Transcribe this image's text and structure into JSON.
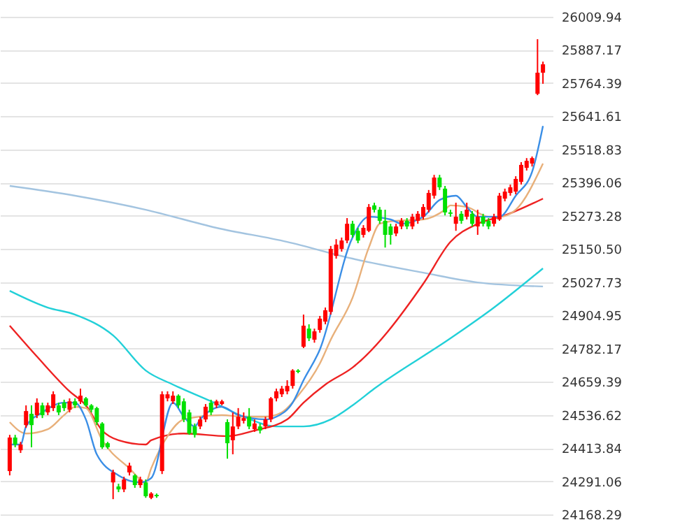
{
  "chart_data": {
    "type": "candlestick",
    "categories": [
      null,
      null,
      null,
      null,
      null,
      null,
      null,
      null,
      null,
      null,
      null,
      null,
      null,
      null,
      null,
      null,
      null,
      null,
      null,
      null,
      null,
      null,
      null,
      null,
      null,
      null,
      null,
      null,
      null,
      null,
      null,
      null,
      null,
      null,
      null,
      null,
      null,
      null,
      null,
      null,
      null,
      null,
      null,
      null,
      null,
      null,
      null,
      null,
      null,
      null,
      null,
      null,
      null,
      null,
      null,
      null,
      null,
      null,
      null,
      null,
      null,
      null,
      null,
      null,
      null,
      null,
      null,
      null,
      null,
      null,
      null,
      null,
      null,
      null,
      null,
      null,
      null,
      null,
      null,
      null,
      null,
      null,
      null,
      null,
      null,
      null,
      null,
      null,
      null,
      null,
      null,
      null,
      null,
      null,
      null,
      null,
      null,
      null,
      null
    ],
    "ohlc": [
      [
        24329,
        24463,
        24313,
        24453
      ],
      [
        24453,
        24463,
        24417,
        24427
      ],
      [
        24406,
        24437,
        24396,
        24427
      ],
      [
        24499,
        24572,
        24489,
        24551
      ],
      [
        24541,
        24572,
        24417,
        24499
      ],
      [
        24536,
        24598,
        24525,
        24582
      ],
      [
        24572,
        24582,
        24525,
        24536
      ],
      [
        24546,
        24582,
        24536,
        24572
      ],
      [
        24562,
        24624,
        24551,
        24613
      ],
      [
        24572,
        24582,
        24536,
        24546
      ],
      [
        24582,
        24593,
        24551,
        24562
      ],
      [
        24556,
        24598,
        24546,
        24587
      ],
      [
        24587,
        24598,
        24562,
        24572
      ],
      [
        24587,
        24634,
        24577,
        24608
      ],
      [
        24598,
        24603,
        24567,
        24572
      ],
      [
        24572,
        24577,
        24546,
        24556
      ],
      [
        24562,
        24567,
        24499,
        24510
      ],
      [
        24505,
        24510,
        24411,
        24417
      ],
      [
        24432,
        24437,
        24411,
        24417
      ],
      [
        24287,
        24334,
        24225,
        24324
      ],
      [
        24272,
        24282,
        24251,
        24261
      ],
      [
        24261,
        24308,
        24251,
        24298
      ],
      [
        24324,
        24360,
        24313,
        24349
      ],
      [
        24313,
        24318,
        24267,
        24277
      ],
      [
        24277,
        24308,
        24267,
        24298
      ],
      [
        24287,
        24298,
        24230,
        24236
      ],
      [
        24230,
        24251,
        24225,
        24246
      ],
      [
        24241,
        24246,
        24230,
        24236
      ],
      [
        24329,
        24624,
        24318,
        24613
      ],
      [
        24598,
        24624,
        24587,
        24613
      ],
      [
        24587,
        24624,
        24577,
        24608
      ],
      [
        24608,
        24613,
        24562,
        24572
      ],
      [
        24587,
        24598,
        24510,
        24520
      ],
      [
        24546,
        24556,
        24463,
        24468
      ],
      [
        24494,
        24505,
        24453,
        24463
      ],
      [
        24494,
        24530,
        24484,
        24520
      ],
      [
        24520,
        24577,
        24510,
        24567
      ],
      [
        24582,
        24593,
        24536,
        24546
      ],
      [
        24572,
        24593,
        24562,
        24587
      ],
      [
        24577,
        24593,
        24572,
        24587
      ],
      [
        24510,
        24520,
        24375,
        24432
      ],
      [
        24443,
        24546,
        24391,
        24494
      ],
      [
        24494,
        24562,
        24484,
        24530
      ],
      [
        24515,
        24546,
        24505,
        24525
      ],
      [
        24530,
        24562,
        24484,
        24494
      ],
      [
        24484,
        24520,
        24474,
        24505
      ],
      [
        24494,
        24505,
        24468,
        24479
      ],
      [
        24494,
        24530,
        24484,
        24520
      ],
      [
        24520,
        24603,
        24510,
        24598
      ],
      [
        24598,
        24634,
        24587,
        24624
      ],
      [
        24613,
        24644,
        24603,
        24634
      ],
      [
        24624,
        24665,
        24613,
        24644
      ],
      [
        24644,
        24706,
        24634,
        24701
      ],
      [
        24701,
        24706,
        24691,
        24696
      ],
      [
        24789,
        24908,
        24784,
        24867
      ],
      [
        24856,
        24872,
        24810,
        24820
      ],
      [
        24815,
        24856,
        24804,
        24846
      ],
      [
        24851,
        24903,
        24841,
        24893
      ],
      [
        24882,
        24934,
        24872,
        24924
      ],
      [
        24918,
        25162,
        24908,
        25151
      ],
      [
        25125,
        25187,
        25115,
        25167
      ],
      [
        25151,
        25193,
        25141,
        25182
      ],
      [
        25182,
        25265,
        25172,
        25244
      ],
      [
        25244,
        25255,
        25193,
        25203
      ],
      [
        25218,
        25229,
        25172,
        25182
      ],
      [
        25203,
        25239,
        25193,
        25229
      ],
      [
        25218,
        25317,
        25213,
        25306
      ],
      [
        25312,
        25322,
        25286,
        25296
      ],
      [
        25296,
        25306,
        25244,
        25255
      ],
      [
        25255,
        25296,
        25156,
        25203
      ],
      [
        25234,
        25244,
        25167,
        25203
      ],
      [
        25208,
        25244,
        25198,
        25234
      ],
      [
        25234,
        25265,
        25224,
        25255
      ],
      [
        25255,
        25265,
        25224,
        25234
      ],
      [
        25234,
        25281,
        25224,
        25270
      ],
      [
        25255,
        25291,
        25244,
        25281
      ],
      [
        25270,
        25317,
        25260,
        25306
      ],
      [
        25296,
        25369,
        25286,
        25358
      ],
      [
        25348,
        25425,
        25337,
        25415
      ],
      [
        25415,
        25425,
        25369,
        25379
      ],
      [
        25374,
        25384,
        25275,
        25286
      ],
      [
        25286,
        25296,
        25270,
        25281
      ],
      [
        25244,
        25322,
        25218,
        25270
      ],
      [
        25281,
        25291,
        25244,
        25255
      ],
      [
        25270,
        25322,
        25260,
        25296
      ],
      [
        25281,
        25291,
        25234,
        25244
      ],
      [
        25234,
        25296,
        25203,
        25270
      ],
      [
        25270,
        25281,
        25234,
        25244
      ],
      [
        25255,
        25265,
        25224,
        25234
      ],
      [
        25244,
        25281,
        25234,
        25270
      ],
      [
        25260,
        25358,
        25255,
        25348
      ],
      [
        25337,
        25374,
        25327,
        25363
      ],
      [
        25358,
        25389,
        25348,
        25379
      ],
      [
        25363,
        25420,
        25353,
        25410
      ],
      [
        25399,
        25472,
        25389,
        25462
      ],
      [
        25451,
        25487,
        25441,
        25477
      ],
      [
        25467,
        25493,
        25456,
        25487
      ],
      [
        25725,
        25927,
        25720,
        25803
      ],
      [
        25803,
        25844,
        25762,
        25834
      ]
    ],
    "colors": [
      "#ff0000",
      "#00e000",
      "#ff0000",
      "#ff0000",
      "#00e000",
      "#ff0000",
      "#00e000",
      "#ff0000",
      "#ff0000",
      "#00e000",
      "#00e000",
      "#ff0000",
      "#00e000",
      "#ff0000",
      "#00e000",
      "#00e000",
      "#00e000",
      "#00e000",
      "#00e000",
      "#ff0000",
      "#00e000",
      "#ff0000",
      "#ff0000",
      "#00e000",
      "#ff0000",
      "#00e000",
      "#ff0000",
      "#00e000",
      "#ff0000",
      "#ff0000",
      "#ff0000",
      "#00e000",
      "#00e000",
      "#00e000",
      "#00e000",
      "#ff0000",
      "#ff0000",
      "#00e000",
      "#ff0000",
      "#ff0000",
      "#00e000",
      "#ff0000",
      "#ff0000",
      "#ff0000",
      "#00e000",
      "#ff0000",
      "#00e000",
      "#ff0000",
      "#ff0000",
      "#ff0000",
      "#ff0000",
      "#ff0000",
      "#ff0000",
      "#00e000",
      "#ff0000",
      "#00e000",
      "#ff0000",
      "#ff0000",
      "#ff0000",
      "#ff0000",
      "#ff0000",
      "#ff0000",
      "#ff0000",
      "#00e000",
      "#00e000",
      "#ff0000",
      "#ff0000",
      "#00e000",
      "#00e000",
      "#00e000",
      "#00e000",
      "#ff0000",
      "#ff0000",
      "#00e000",
      "#ff0000",
      "#ff0000",
      "#ff0000",
      "#ff0000",
      "#ff0000",
      "#00e000",
      "#00e000",
      "#00e000",
      "#ff0000",
      "#00e000",
      "#ff0000",
      "#00e000",
      "#ff0000",
      "#00e000",
      "#00e000",
      "#ff0000",
      "#ff0000",
      "#ff0000",
      "#ff0000",
      "#ff0000",
      "#ff0000",
      "#ff0000",
      "#ff0000",
      "#ff0000",
      "#ff0000"
    ],
    "series": [
      {
        "type": "line",
        "color": "#a3c4e0",
        "values": [
          25384,
          null,
          null,
          null,
          null,
          null,
          null,
          null,
          null,
          null,
          null,
          null,
          25348,
          null,
          null,
          null,
          null,
          null,
          null,
          null,
          null,
          null,
          null,
          null,
          null,
          25296,
          null,
          null,
          null,
          null,
          null,
          null,
          null,
          null,
          null,
          null,
          null,
          null,
          25229,
          null,
          null,
          null,
          null,
          null,
          null,
          null,
          null,
          null,
          null,
          null,
          null,
          25177,
          null,
          null,
          null,
          null,
          null,
          null,
          null,
          null,
          null,
          null,
          null,
          25115,
          null,
          null,
          null,
          null,
          null,
          null,
          null,
          null,
          null,
          null,
          null,
          null,
          25063,
          null,
          null,
          null,
          null,
          null,
          null,
          null,
          null,
          null,
          25027,
          null,
          null,
          null,
          null,
          null,
          null,
          null,
          null,
          null,
          null,
          null,
          25012
        ]
      },
      {
        "type": "line",
        "color": "#22d0d8",
        "values": [
          24996,
          null,
          null,
          null,
          null,
          null,
          null,
          24934,
          null,
          null,
          null,
          null,
          24908,
          null,
          null,
          null,
          null,
          null,
          null,
          24831,
          null,
          null,
          null,
          null,
          null,
          24701,
          null,
          null,
          null,
          null,
          24649,
          null,
          null,
          null,
          null,
          null,
          null,
          24587,
          null,
          null,
          null,
          null,
          null,
          24530,
          null,
          null,
          null,
          null,
          null,
          24494,
          null,
          null,
          null,
          null,
          24494,
          null,
          null,
          null,
          null,
          24520,
          null,
          null,
          null,
          24572,
          null,
          null,
          null,
          24634,
          null,
          null,
          null,
          null,
          null,
          null,
          null,
          null,
          null,
          null,
          null,
          null,
          null,
          24820,
          null,
          null,
          null,
          null,
          null,
          null,
          null,
          24934,
          null,
          null,
          null,
          null,
          null,
          null,
          null,
          null,
          25079
        ]
      },
      {
        "type": "line",
        "color": "#ee2222",
        "values": [
          24867,
          null,
          null,
          null,
          null,
          24753,
          null,
          null,
          null,
          null,
          null,
          24624,
          null,
          null,
          24572,
          null,
          null,
          24479,
          null,
          null,
          24443,
          null,
          null,
          null,
          null,
          24427,
          24443,
          null,
          null,
          null,
          null,
          null,
          24468,
          null,
          null,
          null,
          null,
          null,
          null,
          null,
          24458,
          null,
          null,
          null,
          null,
          24479,
          null,
          null,
          null,
          null,
          null,
          24520,
          null,
          null,
          24582,
          null,
          null,
          null,
          24649,
          null,
          null,
          null,
          null,
          24712,
          null,
          null,
          null,
          null,
          null,
          null,
          null,
          null,
          null,
          null,
          null,
          null,
          25022,
          null,
          null,
          null,
          null,
          25177,
          null,
          null,
          null,
          null,
          25244,
          null,
          null,
          null,
          null,
          25275,
          null,
          null,
          null,
          null,
          null,
          null,
          25337
        ]
      },
      {
        "type": "line",
        "color": "#e8b07a",
        "values": [
          24510,
          null,
          null,
          24468,
          null,
          null,
          null,
          24484,
          null,
          null,
          24536,
          null,
          24567,
          null,
          24562,
          null,
          null,
          24443,
          null,
          null,
          null,
          null,
          24339,
          null,
          null,
          24287,
          24339,
          null,
          null,
          24458,
          null,
          null,
          24520,
          null,
          null,
          null,
          null,
          null,
          null,
          24536,
          null,
          null,
          null,
          24530,
          null,
          null,
          null,
          24530,
          null,
          null,
          24546,
          null,
          null,
          24608,
          null,
          null,
          null,
          24727,
          null,
          24815,
          null,
          null,
          null,
          24970,
          null,
          null,
          25156,
          null,
          25244,
          null,
          null,
          25255,
          null,
          null,
          null,
          null,
          25260,
          null,
          null,
          null,
          25296,
          25312,
          null,
          null,
          25306,
          null,
          null,
          null,
          25270,
          null,
          25270,
          null,
          null,
          25296,
          null,
          null,
          null,
          null,
          25467
        ]
      },
      {
        "type": "line",
        "color": "#3a8ee6",
        "values": [
          24427,
          null,
          24427,
          24494,
          null,
          null,
          24546,
          null,
          null,
          null,
          24582,
          null,
          24582,
          null,
          24520,
          null,
          24391,
          null,
          null,
          null,
          24313,
          null,
          null,
          null,
          24287,
          null,
          24303,
          null,
          null,
          null,
          24582,
          null,
          24530,
          null,
          24494,
          24520,
          null,
          null,
          null,
          24567,
          null,
          null,
          24536,
          null,
          null,
          null,
          null,
          24520,
          null,
          24530,
          null,
          null,
          24582,
          null,
          24665,
          null,
          null,
          24779,
          null,
          null,
          null,
          null,
          null,
          25193,
          null,
          null,
          25270,
          null,
          null,
          null,
          25260,
          null,
          25244,
          null,
          null,
          null,
          25270,
          null,
          null,
          25332,
          null,
          null,
          25348,
          null,
          25306,
          null,
          25270,
          null,
          null,
          null,
          25270,
          null,
          null,
          25348,
          null,
          null,
          25436,
          null,
          25606
        ]
      }
    ],
    "ylim": [
      24122,
      26072
    ],
    "yticks": [
      26009.94,
      25887.17,
      25764.39,
      25641.61,
      25518.83,
      25396.06,
      25273.28,
      {
        "value": 25150.5,
        "label": "25150.50"
      },
      25027.73,
      24904.95,
      24782.17,
      24659.39,
      24536.62,
      24413.84,
      24291.06,
      24168.29
    ],
    "grid": "y",
    "tick_labels": "y"
  }
}
